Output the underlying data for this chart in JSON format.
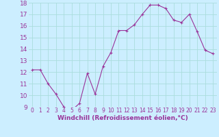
{
  "x": [
    0,
    1,
    2,
    3,
    4,
    5,
    6,
    7,
    8,
    9,
    10,
    11,
    12,
    13,
    14,
    15,
    16,
    17,
    18,
    19,
    20,
    21,
    22,
    23
  ],
  "y": [
    12.2,
    12.2,
    11.0,
    10.1,
    9.0,
    8.7,
    9.3,
    11.9,
    10.1,
    12.5,
    13.7,
    15.6,
    15.6,
    16.1,
    17.0,
    17.8,
    17.8,
    17.5,
    16.5,
    16.3,
    17.0,
    15.5,
    13.9,
    13.6
  ],
  "line_color": "#993399",
  "marker": "+",
  "marker_size": 3,
  "marker_linewidth": 0.8,
  "bg_color": "#cceeff",
  "grid_color": "#aadddd",
  "xlabel": "Windchill (Refroidissement éolien,°C)",
  "xlabel_color": "#993399",
  "tick_color": "#993399",
  "ylim_min": 9,
  "ylim_max": 18,
  "xlim_min": -0.5,
  "xlim_max": 23.5,
  "yticks": [
    9,
    10,
    11,
    12,
    13,
    14,
    15,
    16,
    17,
    18
  ],
  "xticks": [
    0,
    1,
    2,
    3,
    4,
    5,
    6,
    7,
    8,
    9,
    10,
    11,
    12,
    13,
    14,
    15,
    16,
    17,
    18,
    19,
    20,
    21,
    22,
    23
  ],
  "xlabel_fontsize": 6.5,
  "ytick_fontsize": 6.5,
  "xtick_fontsize": 5.5,
  "linewidth": 0.8
}
